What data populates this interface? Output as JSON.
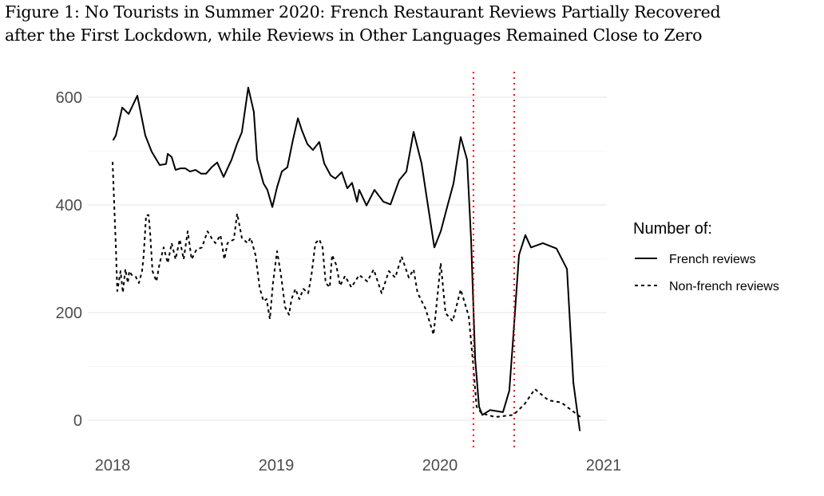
{
  "title_line1": "Figure 1: No Tourists in Summer 2020: French Restaurant Reviews Partially Recovered",
  "title_line2": "after the First Lockdown, while Reviews in Other Languages Remained Close to Zero",
  "chart_data": {
    "type": "line",
    "title": "Figure 1: No Tourists in Summer 2020: French Restaurant Reviews Partially Recovered after the First Lockdown, while Reviews in Other Languages Remained Close to Zero",
    "xlabel": "",
    "ylabel": "",
    "xlim": [
      2018,
      2021
    ],
    "ylim": [
      -50,
      620
    ],
    "x_ticks": [
      "2018",
      "2019",
      "2020",
      "2021"
    ],
    "x_tick_values": [
      2018,
      2019,
      2020,
      2021
    ],
    "y_ticks": [
      "0",
      "200",
      "400",
      "600"
    ],
    "y_tick_values": [
      0,
      200,
      400,
      600
    ],
    "grid": true,
    "legend": {
      "title": "Number of:",
      "placement": "right",
      "entries": [
        "French reviews",
        "Non-french reviews"
      ]
    },
    "vlines": [
      {
        "x": 2020.205,
        "color": "#ff0000",
        "style": "dotted"
      },
      {
        "x": 2020.454,
        "color": "#ff0000",
        "style": "dotted"
      }
    ],
    "series": [
      {
        "name": "French reviews",
        "style": "solid",
        "color": "#000000",
        "x": [
          2018.005,
          2018.02,
          2018.059,
          2018.098,
          2018.151,
          2018.2,
          2018.239,
          2018.288,
          2018.327,
          2018.337,
          2018.361,
          2018.385,
          2018.415,
          2018.444,
          2018.473,
          2018.507,
          2018.541,
          2018.571,
          2018.605,
          2018.639,
          2018.678,
          2018.727,
          2018.761,
          2018.79,
          2018.829,
          2018.863,
          2018.883,
          2018.922,
          2018.946,
          2018.976,
          2019.005,
          2019.034,
          2019.068,
          2019.102,
          2019.132,
          2019.156,
          2019.19,
          2019.224,
          2019.263,
          2019.293,
          2019.332,
          2019.361,
          2019.4,
          2019.434,
          2019.463,
          2019.493,
          2019.507,
          2019.551,
          2019.6,
          2019.654,
          2019.698,
          2019.751,
          2019.795,
          2019.839,
          2019.888,
          2019.917,
          2019.966,
          2020.005,
          2020.044,
          2020.083,
          2020.127,
          2020.166,
          2020.19,
          2020.215,
          2020.239,
          2020.259,
          2020.307,
          2020.385,
          2020.424,
          2020.449,
          2020.483,
          2020.522,
          2020.556,
          2020.629,
          2020.712,
          2020.776,
          2020.815,
          2020.854
        ],
        "values": [
          521,
          529,
          581,
          569,
          603,
          529,
          499,
          474,
          476,
          495,
          489,
          465,
          468,
          468,
          462,
          465,
          458,
          458,
          470,
          479,
          452,
          484,
          514,
          535,
          618,
          573,
          484,
          440,
          428,
          396,
          433,
          462,
          470,
          521,
          561,
          539,
          513,
          502,
          517,
          477,
          455,
          449,
          461,
          431,
          441,
          406,
          428,
          399,
          428,
          406,
          401,
          446,
          462,
          536,
          477,
          418,
          321,
          351,
          396,
          440,
          526,
          484,
          336,
          114,
          25,
          10,
          19,
          15,
          55,
          159,
          307,
          344,
          321,
          329,
          319,
          281,
          70,
          -19
        ]
      },
      {
        "name": "Non-french reviews",
        "style": "dashed",
        "color": "#000000",
        "x": [
          2018.0,
          2018.02,
          2018.029,
          2018.049,
          2018.063,
          2018.078,
          2018.093,
          2018.102,
          2018.117,
          2018.141,
          2018.161,
          2018.18,
          2018.19,
          2018.205,
          2018.22,
          2018.229,
          2018.244,
          2018.268,
          2018.288,
          2018.312,
          2018.337,
          2018.361,
          2018.385,
          2018.41,
          2018.434,
          2018.459,
          2018.483,
          2018.512,
          2018.546,
          2018.58,
          2018.61,
          2018.629,
          2018.659,
          2018.683,
          2018.702,
          2018.741,
          2018.761,
          2018.79,
          2018.824,
          2018.844,
          2018.873,
          2018.898,
          2018.922,
          2018.941,
          2018.961,
          2018.98,
          2019.005,
          2019.029,
          2019.054,
          2019.078,
          2019.093,
          2019.117,
          2019.141,
          2019.166,
          2019.195,
          2019.215,
          2019.239,
          2019.263,
          2019.283,
          2019.302,
          2019.327,
          2019.341,
          2019.366,
          2019.39,
          2019.42,
          2019.459,
          2019.507,
          2019.556,
          2019.595,
          2019.644,
          2019.688,
          2019.727,
          2019.766,
          2019.81,
          2019.839,
          2019.863,
          2019.912,
          2019.961,
          2020.005,
          2020.034,
          2020.078,
          2020.127,
          2020.176,
          2020.2,
          2020.224,
          2020.254,
          2020.337,
          2020.449,
          2020.517,
          2020.58,
          2020.663,
          2020.741,
          2020.859
        ],
        "values": [
          480,
          322,
          240,
          277,
          237,
          281,
          255,
          277,
          270,
          267,
          255,
          277,
          307,
          381,
          381,
          351,
          277,
          258,
          292,
          321,
          292,
          329,
          299,
          336,
          299,
          351,
          299,
          317,
          321,
          351,
          336,
          329,
          344,
          299,
          329,
          336,
          384,
          339,
          329,
          339,
          307,
          247,
          221,
          225,
          188,
          255,
          314,
          270,
          210,
          196,
          225,
          244,
          225,
          244,
          236,
          270,
          329,
          336,
          321,
          255,
          247,
          307,
          289,
          250,
          268,
          247,
          270,
          258,
          280,
          236,
          277,
          265,
          304,
          265,
          280,
          237,
          207,
          159,
          292,
          199,
          184,
          243,
          193,
          114,
          25,
          13,
          6,
          10,
          30,
          58,
          37,
          33,
          6
        ]
      }
    ]
  }
}
